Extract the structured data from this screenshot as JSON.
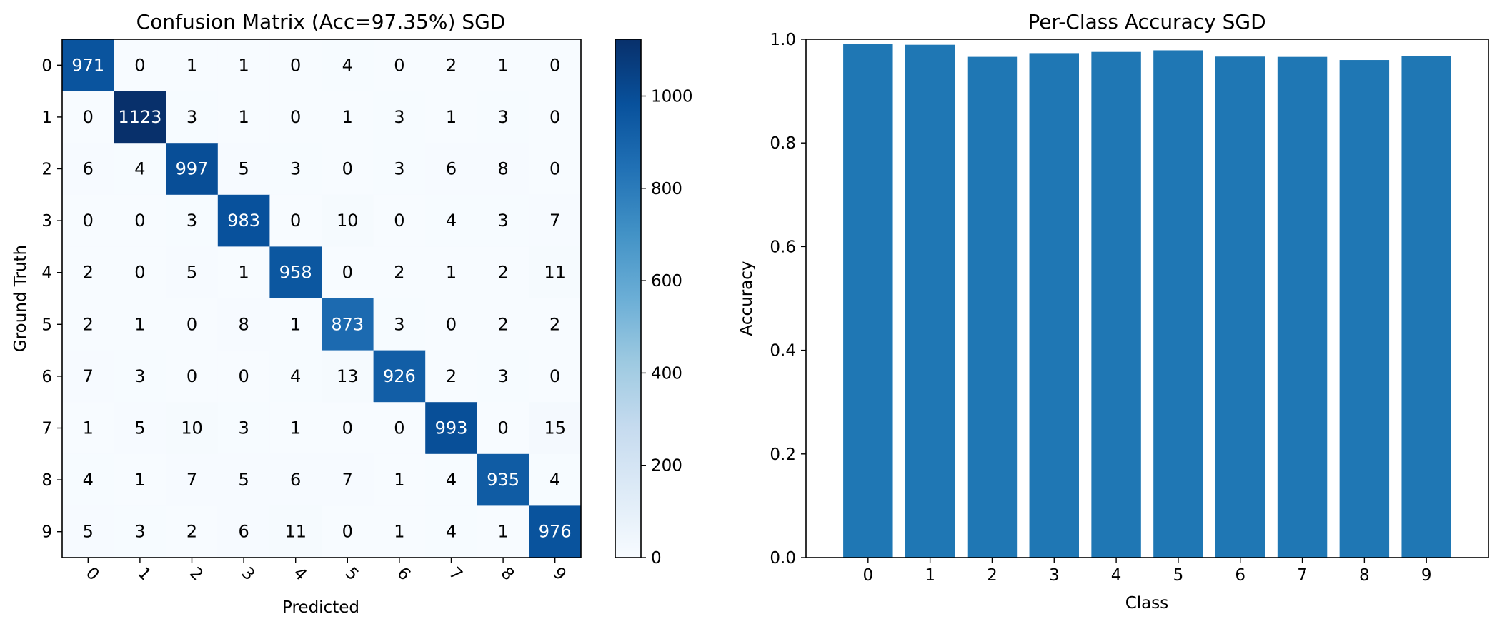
{
  "chart_data": [
    {
      "type": "heatmap",
      "title": "Confusion Matrix (Acc=97.35%) SGD",
      "xlabel": "Predicted",
      "ylabel": "Ground Truth",
      "x_categories": [
        "0",
        "1",
        "2",
        "3",
        "4",
        "5",
        "6",
        "7",
        "8",
        "9"
      ],
      "y_categories": [
        "0",
        "1",
        "2",
        "3",
        "4",
        "5",
        "6",
        "7",
        "8",
        "9"
      ],
      "matrix": [
        [
          971,
          0,
          1,
          1,
          0,
          4,
          0,
          2,
          1,
          0
        ],
        [
          0,
          1123,
          3,
          1,
          0,
          1,
          3,
          1,
          3,
          0
        ],
        [
          6,
          4,
          997,
          5,
          3,
          0,
          3,
          6,
          8,
          0
        ],
        [
          0,
          0,
          3,
          983,
          0,
          10,
          0,
          4,
          3,
          7
        ],
        [
          2,
          0,
          5,
          1,
          958,
          0,
          2,
          1,
          2,
          11
        ],
        [
          2,
          1,
          0,
          8,
          1,
          873,
          3,
          0,
          2,
          2
        ],
        [
          7,
          3,
          0,
          0,
          4,
          13,
          926,
          2,
          3,
          0
        ],
        [
          1,
          5,
          10,
          3,
          1,
          0,
          0,
          993,
          0,
          15
        ],
        [
          4,
          1,
          7,
          5,
          6,
          7,
          1,
          4,
          935,
          4
        ],
        [
          5,
          3,
          2,
          6,
          11,
          0,
          1,
          4,
          1,
          976
        ]
      ],
      "colormap": "Blues",
      "colorbar": {
        "min": 0,
        "max": 1123,
        "ticks": [
          0,
          200,
          400,
          600,
          800,
          1000
        ]
      }
    },
    {
      "type": "bar",
      "title": "Per-Class Accuracy SGD",
      "xlabel": "Class",
      "ylabel": "Accuracy",
      "categories": [
        "0",
        "1",
        "2",
        "3",
        "4",
        "5",
        "6",
        "7",
        "8",
        "9"
      ],
      "values": [
        0.9908,
        0.9894,
        0.9661,
        0.9733,
        0.9756,
        0.9787,
        0.9666,
        0.966,
        0.96,
        0.9673
      ],
      "ylim": [
        0,
        1.0
      ],
      "yticks": [
        0.0,
        0.2,
        0.4,
        0.6,
        0.8,
        1.0
      ],
      "color": "#1f77b4"
    }
  ]
}
